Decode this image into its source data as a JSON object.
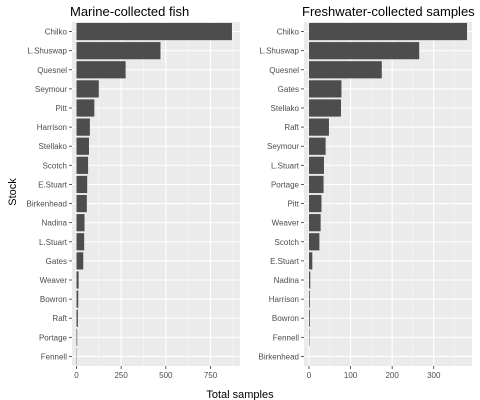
{
  "figure": {
    "ylabel": "Stock",
    "xlabel": "Total samples"
  },
  "chart_data": [
    {
      "type": "bar",
      "orientation": "horizontal",
      "title": "Marine-collected fish",
      "categories": [
        "Chilko",
        "L.Shuswap",
        "Quesnel",
        "Seymour",
        "Pitt",
        "Harrison",
        "Stellako",
        "Scotch",
        "E.Stuart",
        "Birkenhead",
        "Nadina",
        "L.Stuart",
        "Gates",
        "Weaver",
        "Bowron",
        "Raft",
        "Portage",
        "Fennell"
      ],
      "values": [
        870,
        470,
        275,
        125,
        100,
        75,
        70,
        65,
        60,
        58,
        45,
        43,
        38,
        12,
        10,
        8,
        4,
        2
      ],
      "xlim": [
        -25,
        915
      ],
      "xticks": [
        0,
        250,
        500,
        750
      ],
      "grid": true,
      "bar_color": "#4d4d4d",
      "panel_color": "#ebebeb"
    },
    {
      "type": "bar",
      "orientation": "horizontal",
      "title": "Freshwater-collected samples",
      "categories": [
        "Chilko",
        "L.Shuswap",
        "Quesnel",
        "Gates",
        "Stellako",
        "Raft",
        "Seymour",
        "L.Stuart",
        "Portage",
        "Pitt",
        "Weaver",
        "Scotch",
        "E.Stuart",
        "Nadina",
        "Harrison",
        "Bowron",
        "Fennell",
        "Birkenhead"
      ],
      "values": [
        380,
        265,
        175,
        78,
        77,
        48,
        40,
        36,
        35,
        30,
        28,
        25,
        8,
        3,
        2,
        2,
        1,
        0
      ],
      "xlim": [
        -12,
        392
      ],
      "xticks": [
        0,
        100,
        200,
        300
      ],
      "grid": true,
      "bar_color": "#4d4d4d",
      "panel_color": "#ebebeb"
    }
  ]
}
